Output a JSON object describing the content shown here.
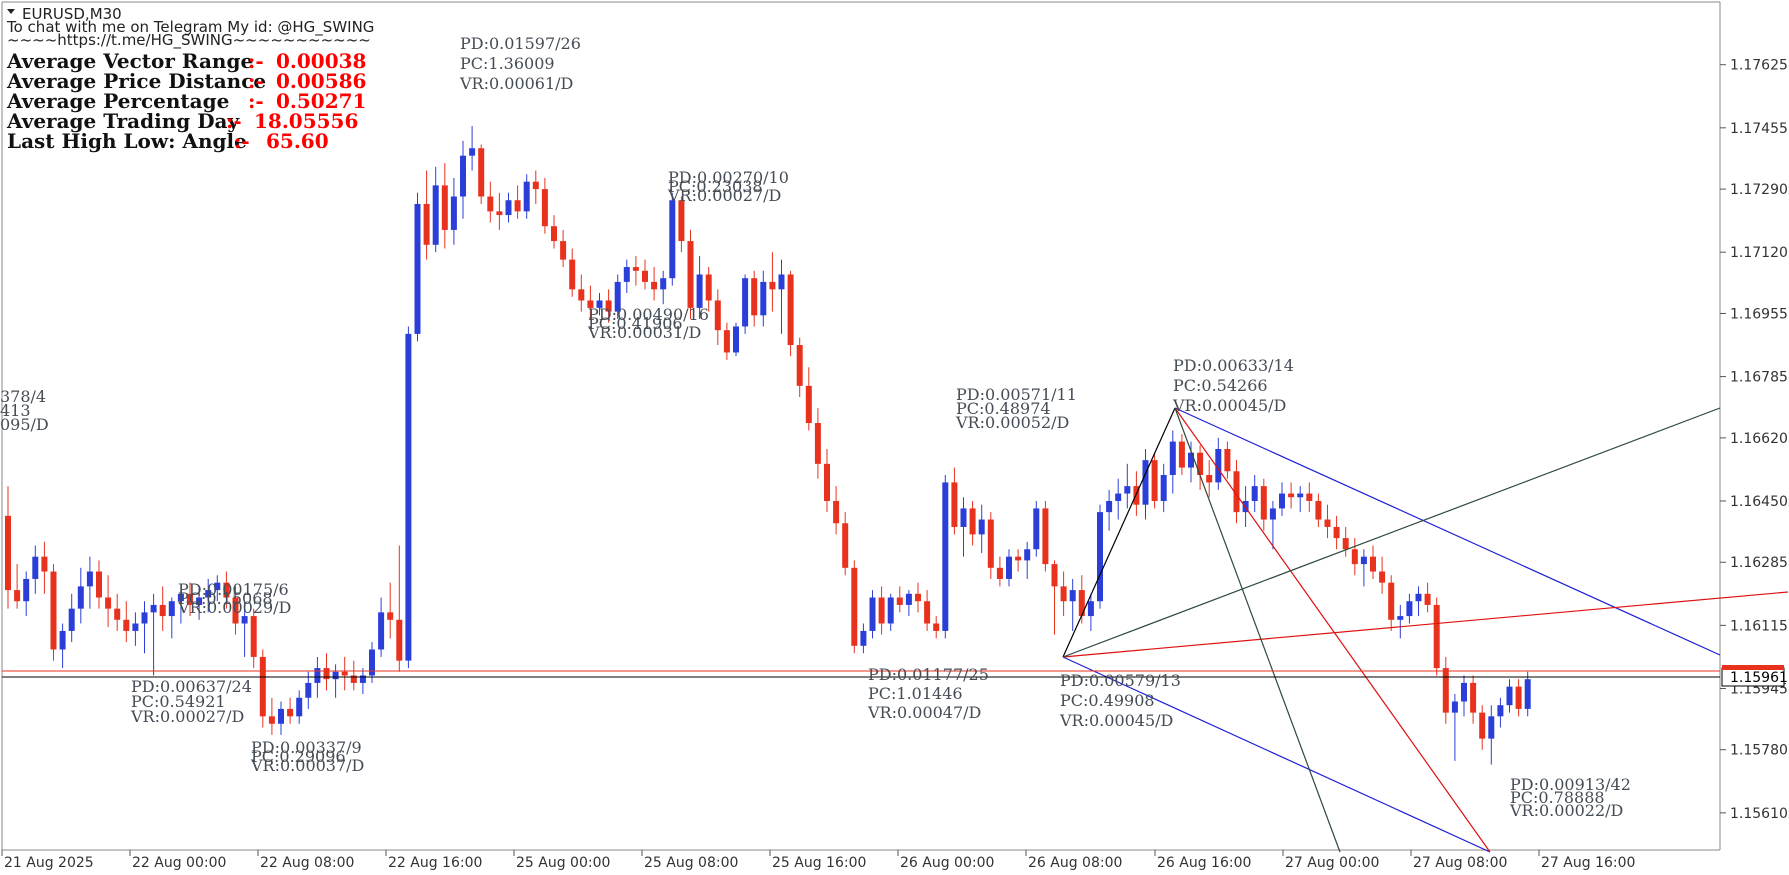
{
  "header": {
    "symbol": "EURUSD,M30",
    "contact": "To chat with me on Telegram My id: @HG_SWING",
    "link": "~~~~https://t.me/HG_SWING~~~~~~~~~~~"
  },
  "stats": [
    {
      "label": "Average Vector Range",
      "sep": ":-",
      "value": "0.00038"
    },
    {
      "label": "Average Price Distance",
      "sep": ":-",
      "value": "0.00586"
    },
    {
      "label": "Average Percentage",
      "sep": ":-",
      "value": "0.50271"
    },
    {
      "label": "Average Trading Day",
      "sep": ":-",
      "value": "18.05556"
    },
    {
      "label": "Last High Low: Angle",
      "sep": ":-",
      "value": "65.60"
    }
  ],
  "colors": {
    "bull": "#2b3fd8",
    "bear": "#e8321e",
    "grid_frame": "#888888",
    "annotation": "#444c55",
    "stat_value": "#ff0000",
    "bid_line": "#000000",
    "ask_line": "#e8321e",
    "blue_line": "#1f1fd6",
    "red_line": "#e01010",
    "dark_line": "#2e4a3a"
  },
  "current_price": "1.15961",
  "chart_data": {
    "type": "candlestick",
    "title": "EURUSD,M30",
    "ylim": [
      1.1551,
      1.1774
    ],
    "y_ticks": [
      "1.17625",
      "1.17455",
      "1.17290",
      "1.17120",
      "1.16955",
      "1.16785",
      "1.16620",
      "1.16450",
      "1.16285",
      "1.16115",
      "1.15945",
      "1.15780",
      "1.15610"
    ],
    "x_ticks": [
      "21 Aug 2025",
      "22 Aug 00:00",
      "22 Aug 08:00",
      "22 Aug 16:00",
      "25 Aug 00:00",
      "25 Aug 08:00",
      "25 Aug 16:00",
      "26 Aug 00:00",
      "26 Aug 08:00",
      "26 Aug 16:00",
      "27 Aug 00:00",
      "27 Aug 08:00",
      "27 Aug 16:00"
    ],
    "grid": false,
    "candles": [
      [
        1.1641,
        1.1649,
        1.1616,
        1.1621
      ],
      [
        1.1621,
        1.1628,
        1.1616,
        1.1618
      ],
      [
        1.1618,
        1.1626,
        1.1614,
        1.1624
      ],
      [
        1.1624,
        1.1633,
        1.162,
        1.163
      ],
      [
        1.163,
        1.1634,
        1.162,
        1.1626
      ],
      [
        1.1626,
        1.1628,
        1.1602,
        1.1605
      ],
      [
        1.1605,
        1.1612,
        1.16,
        1.161
      ],
      [
        1.161,
        1.162,
        1.1607,
        1.1616
      ],
      [
        1.1616,
        1.1627,
        1.1612,
        1.1622
      ],
      [
        1.1622,
        1.163,
        1.1616,
        1.1626
      ],
      [
        1.1626,
        1.1629,
        1.1616,
        1.1619
      ],
      [
        1.1619,
        1.1625,
        1.1611,
        1.1616
      ],
      [
        1.1616,
        1.162,
        1.161,
        1.1613
      ],
      [
        1.1613,
        1.1618,
        1.1607,
        1.161
      ],
      [
        1.161,
        1.1615,
        1.1606,
        1.1612
      ],
      [
        1.1612,
        1.1618,
        1.1604,
        1.1615
      ],
      [
        1.1615,
        1.162,
        1.1598,
        1.1617
      ],
      [
        1.1617,
        1.1622,
        1.161,
        1.1614
      ],
      [
        1.1614,
        1.1619,
        1.1608,
        1.1618
      ],
      [
        1.1618,
        1.1622,
        1.1612,
        1.162
      ],
      [
        1.162,
        1.1623,
        1.1614,
        1.1617
      ],
      [
        1.1617,
        1.1622,
        1.1613,
        1.1619
      ],
      [
        1.1619,
        1.1624,
        1.1615,
        1.1621
      ],
      [
        1.1621,
        1.1625,
        1.1618,
        1.1623
      ],
      [
        1.1623,
        1.1626,
        1.1616,
        1.1619
      ],
      [
        1.1619,
        1.1622,
        1.1609,
        1.1612
      ],
      [
        1.1612,
        1.1618,
        1.1603,
        1.1614
      ],
      [
        1.1614,
        1.1616,
        1.16,
        1.1603
      ],
      [
        1.1603,
        1.1605,
        1.1584,
        1.1587
      ],
      [
        1.1587,
        1.1592,
        1.1582,
        1.1585
      ],
      [
        1.1585,
        1.1591,
        1.1582,
        1.1589
      ],
      [
        1.1589,
        1.1592,
        1.1585,
        1.1587
      ],
      [
        1.1587,
        1.1594,
        1.1585,
        1.1592
      ],
      [
        1.1592,
        1.1599,
        1.1589,
        1.1596
      ],
      [
        1.1596,
        1.1603,
        1.1592,
        1.16
      ],
      [
        1.16,
        1.1604,
        1.1594,
        1.1597
      ],
      [
        1.1597,
        1.1601,
        1.1592,
        1.1599
      ],
      [
        1.1599,
        1.1603,
        1.1594,
        1.1598
      ],
      [
        1.1598,
        1.1602,
        1.1594,
        1.1596
      ],
      [
        1.1596,
        1.16,
        1.1593,
        1.1598
      ],
      [
        1.1598,
        1.1607,
        1.1596,
        1.1605
      ],
      [
        1.1605,
        1.1619,
        1.1603,
        1.1615
      ],
      [
        1.1615,
        1.1623,
        1.1608,
        1.1613
      ],
      [
        1.1613,
        1.1633,
        1.1599,
        1.1602
      ],
      [
        1.1602,
        1.1692,
        1.16,
        1.169
      ],
      [
        1.169,
        1.1728,
        1.1688,
        1.1725
      ],
      [
        1.1725,
        1.1734,
        1.171,
        1.1714
      ],
      [
        1.1714,
        1.1735,
        1.1712,
        1.173
      ],
      [
        1.173,
        1.1736,
        1.1713,
        1.1718
      ],
      [
        1.1718,
        1.1732,
        1.1714,
        1.1727
      ],
      [
        1.1727,
        1.1742,
        1.1721,
        1.1738
      ],
      [
        1.1738,
        1.1746,
        1.1734,
        1.174
      ],
      [
        1.174,
        1.1741,
        1.1725,
        1.1727
      ],
      [
        1.1727,
        1.1731,
        1.172,
        1.1723
      ],
      [
        1.1723,
        1.1728,
        1.1718,
        1.1722
      ],
      [
        1.1722,
        1.1728,
        1.172,
        1.1726
      ],
      [
        1.1726,
        1.173,
        1.1721,
        1.1723
      ],
      [
        1.1723,
        1.1733,
        1.1721,
        1.1731
      ],
      [
        1.1731,
        1.1734,
        1.1725,
        1.1729
      ],
      [
        1.1729,
        1.1732,
        1.1717,
        1.1719
      ],
      [
        1.1719,
        1.1722,
        1.1713,
        1.1715
      ],
      [
        1.1715,
        1.1718,
        1.1708,
        1.171
      ],
      [
        1.171,
        1.1713,
        1.17,
        1.1702
      ],
      [
        1.1702,
        1.1706,
        1.1696,
        1.1699
      ],
      [
        1.1699,
        1.1703,
        1.1694,
        1.1697
      ],
      [
        1.1697,
        1.1701,
        1.1695,
        1.1699
      ],
      [
        1.1699,
        1.1702,
        1.1693,
        1.1696
      ],
      [
        1.1696,
        1.1706,
        1.1694,
        1.1704
      ],
      [
        1.1704,
        1.171,
        1.1701,
        1.1708
      ],
      [
        1.1708,
        1.1711,
        1.1703,
        1.1707
      ],
      [
        1.1707,
        1.171,
        1.1702,
        1.1704
      ],
      [
        1.1704,
        1.1708,
        1.1699,
        1.1702
      ],
      [
        1.1702,
        1.1707,
        1.1698,
        1.1705
      ],
      [
        1.1705,
        1.1728,
        1.1703,
        1.1726
      ],
      [
        1.1726,
        1.1727,
        1.1712,
        1.1715
      ],
      [
        1.1715,
        1.1718,
        1.1694,
        1.1697
      ],
      [
        1.1697,
        1.1711,
        1.1694,
        1.1706
      ],
      [
        1.1706,
        1.1708,
        1.1696,
        1.1699
      ],
      [
        1.1699,
        1.1702,
        1.1687,
        1.1691
      ],
      [
        1.1691,
        1.1693,
        1.1683,
        1.1685
      ],
      [
        1.1685,
        1.1693,
        1.1684,
        1.1692
      ],
      [
        1.1692,
        1.1706,
        1.169,
        1.1705
      ],
      [
        1.1705,
        1.1707,
        1.1692,
        1.1695
      ],
      [
        1.1695,
        1.1707,
        1.1692,
        1.1704
      ],
      [
        1.1704,
        1.1712,
        1.1696,
        1.1702
      ],
      [
        1.1702,
        1.171,
        1.169,
        1.1706
      ],
      [
        1.1706,
        1.1707,
        1.1684,
        1.1687
      ],
      [
        1.1687,
        1.1689,
        1.1673,
        1.1676
      ],
      [
        1.1676,
        1.1681,
        1.1664,
        1.1666
      ],
      [
        1.1666,
        1.167,
        1.1651,
        1.1655
      ],
      [
        1.1655,
        1.1659,
        1.1642,
        1.1645
      ],
      [
        1.1645,
        1.1649,
        1.1636,
        1.1639
      ],
      [
        1.1639,
        1.1642,
        1.1625,
        1.1627
      ],
      [
        1.1627,
        1.1629,
        1.1604,
        1.1606
      ],
      [
        1.1606,
        1.1612,
        1.1604,
        1.161
      ],
      [
        1.161,
        1.1621,
        1.1608,
        1.1619
      ],
      [
        1.1619,
        1.1622,
        1.1609,
        1.1612
      ],
      [
        1.1612,
        1.162,
        1.161,
        1.1619
      ],
      [
        1.1619,
        1.1622,
        1.1615,
        1.1617
      ],
      [
        1.1617,
        1.1621,
        1.1614,
        1.162
      ],
      [
        1.162,
        1.1623,
        1.1615,
        1.1618
      ],
      [
        1.1618,
        1.1621,
        1.161,
        1.1612
      ],
      [
        1.1612,
        1.1614,
        1.1608,
        1.161
      ],
      [
        1.161,
        1.1652,
        1.1608,
        1.165
      ],
      [
        1.165,
        1.1654,
        1.1636,
        1.1638
      ],
      [
        1.1638,
        1.1646,
        1.163,
        1.1643
      ],
      [
        1.1643,
        1.1645,
        1.1633,
        1.1636
      ],
      [
        1.1636,
        1.1644,
        1.1631,
        1.164
      ],
      [
        1.164,
        1.1642,
        1.1624,
        1.1627
      ],
      [
        1.1627,
        1.163,
        1.1622,
        1.1624
      ],
      [
        1.1624,
        1.1632,
        1.1622,
        1.163
      ],
      [
        1.163,
        1.1632,
        1.1626,
        1.1629
      ],
      [
        1.1629,
        1.1634,
        1.1624,
        1.1632
      ],
      [
        1.1632,
        1.1645,
        1.163,
        1.1643
      ],
      [
        1.1643,
        1.1645,
        1.1626,
        1.1628
      ],
      [
        1.1628,
        1.1629,
        1.1609,
        1.1622
      ],
      [
        1.1622,
        1.1626,
        1.1614,
        1.1618
      ],
      [
        1.1618,
        1.1624,
        1.161,
        1.1621
      ],
      [
        1.1621,
        1.1625,
        1.1612,
        1.1614
      ],
      [
        1.1614,
        1.162,
        1.161,
        1.1618
      ],
      [
        1.1618,
        1.1644,
        1.1616,
        1.1642
      ],
      [
        1.1642,
        1.1648,
        1.1637,
        1.1645
      ],
      [
        1.1645,
        1.1651,
        1.164,
        1.1647
      ],
      [
        1.1647,
        1.1655,
        1.1643,
        1.1649
      ],
      [
        1.1649,
        1.1653,
        1.1641,
        1.1644
      ],
      [
        1.1644,
        1.1659,
        1.164,
        1.1656
      ],
      [
        1.1656,
        1.1658,
        1.1643,
        1.1645
      ],
      [
        1.1645,
        1.1655,
        1.1642,
        1.1652
      ],
      [
        1.1652,
        1.1664,
        1.1647,
        1.1661
      ],
      [
        1.1661,
        1.1663,
        1.1652,
        1.1654
      ],
      [
        1.1654,
        1.1661,
        1.165,
        1.1658
      ],
      [
        1.1658,
        1.166,
        1.1648,
        1.1652
      ],
      [
        1.1652,
        1.1656,
        1.1646,
        1.165
      ],
      [
        1.165,
        1.1662,
        1.1648,
        1.1659
      ],
      [
        1.1659,
        1.1661,
        1.1651,
        1.1653
      ],
      [
        1.1653,
        1.1656,
        1.1639,
        1.1642
      ],
      [
        1.1642,
        1.1649,
        1.1638,
        1.1645
      ],
      [
        1.1645,
        1.1652,
        1.1642,
        1.1649
      ],
      [
        1.1649,
        1.1651,
        1.1637,
        1.164
      ],
      [
        1.164,
        1.1645,
        1.1632,
        1.1643
      ],
      [
        1.1643,
        1.165,
        1.1641,
        1.1647
      ],
      [
        1.1647,
        1.165,
        1.1643,
        1.1646
      ],
      [
        1.1646,
        1.1649,
        1.1642,
        1.1647
      ],
      [
        1.1647,
        1.165,
        1.1642,
        1.1645
      ],
      [
        1.1645,
        1.1647,
        1.1638,
        1.164
      ],
      [
        1.164,
        1.1644,
        1.1635,
        1.1638
      ],
      [
        1.1638,
        1.1641,
        1.1632,
        1.1635
      ],
      [
        1.1635,
        1.1638,
        1.163,
        1.1632
      ],
      [
        1.1632,
        1.1635,
        1.1625,
        1.1628
      ],
      [
        1.1628,
        1.1632,
        1.1622,
        1.163
      ],
      [
        1.163,
        1.1633,
        1.1624,
        1.1626
      ],
      [
        1.1626,
        1.163,
        1.162,
        1.1623
      ],
      [
        1.1623,
        1.1625,
        1.161,
        1.1613
      ],
      [
        1.1613,
        1.1617,
        1.1608,
        1.1614
      ],
      [
        1.1614,
        1.162,
        1.1612,
        1.1618
      ],
      [
        1.1618,
        1.1622,
        1.1614,
        1.162
      ],
      [
        1.162,
        1.1623,
        1.1615,
        1.1617
      ],
      [
        1.1617,
        1.1619,
        1.1598,
        1.16
      ],
      [
        1.16,
        1.1603,
        1.1585,
        1.1588
      ],
      [
        1.1588,
        1.1593,
        1.1575,
        1.1591
      ],
      [
        1.1591,
        1.1598,
        1.1587,
        1.1596
      ],
      [
        1.1596,
        1.1598,
        1.1585,
        1.1588
      ],
      [
        1.1588,
        1.159,
        1.1578,
        1.1581
      ],
      [
        1.1581,
        1.159,
        1.1574,
        1.1587
      ],
      [
        1.1587,
        1.1592,
        1.1584,
        1.159
      ],
      [
        1.159,
        1.1597,
        1.1588,
        1.1595
      ],
      [
        1.1595,
        1.1597,
        1.1587,
        1.1589
      ],
      [
        1.1589,
        1.1599,
        1.1587,
        1.1597
      ]
    ],
    "annotations": [
      {
        "lines": [
          "PD:0.01597/26",
          "PC:1.36009",
          "VR:0.00061/D"
        ]
      },
      {
        "lines": [
          "PD:0.00270/10",
          "PC:0.23038",
          "VR:0.00027/D"
        ]
      },
      {
        "lines": [
          "PD:0.00490/16",
          "PC:0.41906",
          "VR:0.00031/D"
        ]
      },
      {
        "lines": [
          "PD:0.00571/11",
          "PC:0.48974",
          "VR:0.00052/D"
        ]
      },
      {
        "lines": [
          "PD:0.00633/14",
          "PC:0.54266",
          "VR:0.00045/D"
        ]
      },
      {
        "lines": [
          "PD:0.00175/6",
          "PC:0.15068",
          "VR:0.00029/D"
        ]
      },
      {
        "lines": [
          "PD:0.00637/24",
          "PC:0.54921",
          "VR:0.00027/D"
        ]
      },
      {
        "lines": [
          "PD:0.00337/9",
          "PC:0.29096",
          "VR:0.00037/D"
        ]
      },
      {
        "lines": [
          "PD:0.01177/25",
          "PC:1.01446",
          "VR:0.00047/D"
        ]
      },
      {
        "lines": [
          "PD:0.00579/13",
          "PC:0.49908",
          "VR:0.00045/D"
        ]
      },
      {
        "lines": [
          "PD:0.00913/42",
          "PC:0.78888",
          "VR:0.00022/D"
        ]
      },
      {
        "lines": [
          "378/4",
          "413",
          "095/D"
        ]
      }
    ]
  }
}
